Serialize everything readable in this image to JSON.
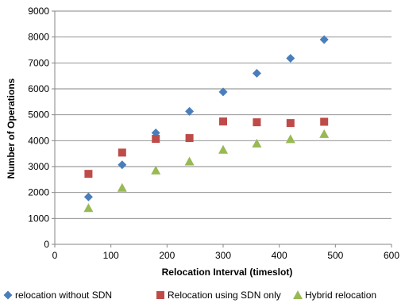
{
  "chart_data": {
    "type": "scatter",
    "title": "",
    "xlabel": "Relocation Interval (timeslot)",
    "ylabel": "Number of Operations",
    "xlim": [
      0,
      600
    ],
    "ylim": [
      0,
      9000
    ],
    "xticks": [
      0,
      100,
      200,
      300,
      400,
      500,
      600
    ],
    "yticks": [
      0,
      1000,
      2000,
      3000,
      4000,
      5000,
      6000,
      7000,
      8000,
      9000
    ],
    "grid": "horizontal",
    "legend_position": "bottom",
    "series": [
      {
        "name": "relocation without SDN",
        "marker": "diamond",
        "color": "#4a7ebb",
        "points": [
          [
            60,
            1830
          ],
          [
            120,
            3070
          ],
          [
            180,
            4300
          ],
          [
            240,
            5130
          ],
          [
            300,
            5880
          ],
          [
            360,
            6600
          ],
          [
            420,
            7180
          ],
          [
            480,
            7900
          ]
        ]
      },
      {
        "name": "Relocation using SDN only",
        "marker": "square",
        "color": "#be4b48",
        "points": [
          [
            60,
            2720
          ],
          [
            120,
            3540
          ],
          [
            180,
            4070
          ],
          [
            240,
            4100
          ],
          [
            300,
            4740
          ],
          [
            360,
            4710
          ],
          [
            420,
            4680
          ],
          [
            480,
            4730
          ]
        ]
      },
      {
        "name": "Hybrid relocation",
        "marker": "triangle",
        "color": "#98b954",
        "points": [
          [
            60,
            1400
          ],
          [
            120,
            2180
          ],
          [
            180,
            2850
          ],
          [
            240,
            3200
          ],
          [
            300,
            3650
          ],
          [
            360,
            3890
          ],
          [
            420,
            4060
          ],
          [
            480,
            4260
          ]
        ]
      }
    ]
  }
}
